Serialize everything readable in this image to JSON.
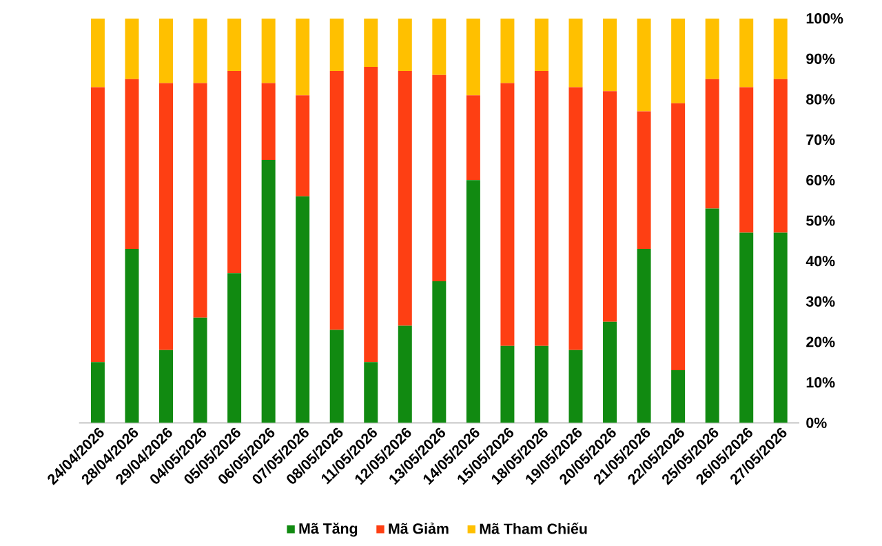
{
  "chart_data": {
    "type": "bar",
    "stacked": true,
    "legend": "bottom",
    "grid": false,
    "categories": [
      "24/04/2026",
      "28/04/2026",
      "29/04/2026",
      "04/05/2026",
      "05/05/2026",
      "06/05/2026",
      "07/05/2026",
      "08/05/2026",
      "11/05/2026",
      "12/05/2026",
      "13/05/2026",
      "14/05/2026",
      "15/05/2026",
      "18/05/2026",
      "19/05/2026",
      "20/05/2026",
      "21/05/2026",
      "22/05/2026",
      "25/05/2026",
      "26/05/2026",
      "27/05/2026"
    ],
    "series": [
      {
        "name": "Mã Tăng",
        "color": "#118a11",
        "values": [
          15,
          43,
          18,
          26,
          37,
          65,
          56,
          23,
          15,
          24,
          35,
          60,
          19,
          19,
          18,
          25,
          43,
          13,
          53,
          47,
          47
        ]
      },
      {
        "name": "Mã Giảm",
        "color": "#fe3f13",
        "values": [
          68,
          42,
          66,
          58,
          50,
          19,
          25,
          64,
          73,
          63,
          51,
          21,
          65,
          68,
          65,
          57,
          34,
          66,
          32,
          36,
          38
        ]
      },
      {
        "name": "Mã Tham Chiếu",
        "color": "#ffc000",
        "values": [
          17,
          15,
          16,
          16,
          13,
          16,
          19,
          13,
          12,
          13,
          14,
          19,
          16,
          13,
          17,
          18,
          23,
          21,
          15,
          17,
          15
        ]
      }
    ],
    "ylim": [
      0,
      100
    ],
    "yticks": [
      {
        "value": 0,
        "label": "0%"
      },
      {
        "value": 10,
        "label": "10%"
      },
      {
        "value": 20,
        "label": "20%"
      },
      {
        "value": 30,
        "label": "30%"
      },
      {
        "value": 40,
        "label": "40%"
      },
      {
        "value": 50,
        "label": "50%"
      },
      {
        "value": 60,
        "label": "60%"
      },
      {
        "value": 70,
        "label": "70%"
      },
      {
        "value": 80,
        "label": "80%"
      },
      {
        "value": 90,
        "label": "90%"
      },
      {
        "value": 100,
        "label": "100%"
      }
    ]
  }
}
